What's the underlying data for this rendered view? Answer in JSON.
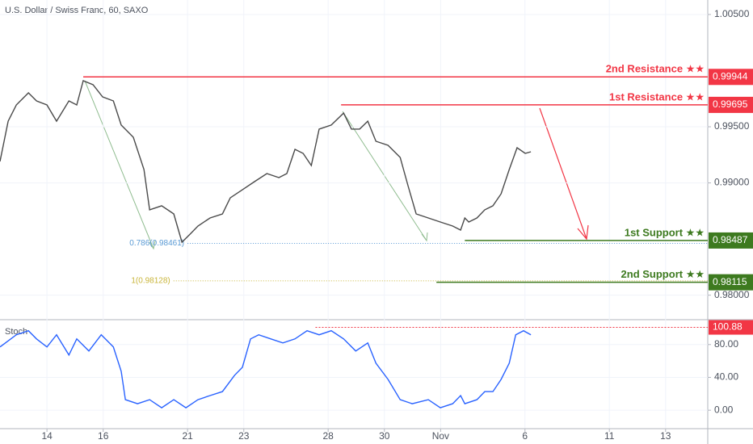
{
  "chart_data": [
    {
      "type": "line",
      "title": "U.S. Dollar / Swiss Franc, 60, SAXO",
      "color": "#4a4a4a",
      "x": [
        -1.67,
        -1.38,
        -1.09,
        -0.66,
        -0.37,
        0,
        0.34,
        0.78,
        1.06,
        1.29,
        1.64,
        1.98,
        2.36,
        2.64,
        3.07,
        3.45,
        3.65,
        4.08,
        4.51,
        4.8,
        5.09,
        5.37,
        5.8,
        6.24,
        6.52,
        6.95,
        7.38,
        7.82,
        8.25,
        8.53,
        8.82,
        9.11,
        9.4,
        9.68,
        10.11,
        10.55,
        10.83,
        11.12,
        11.41,
        11.7,
        12.13,
        12.56,
        12.84,
        13.13,
        13.56,
        13.99,
        14.43,
        14.71,
        14.86,
        15,
        15.29,
        15.57,
        15.86,
        16.15,
        16.44,
        16.72,
        17.01,
        17.21
      ],
      "values": [
        0.99191,
        0.9955,
        0.99694,
        0.99802,
        0.9973,
        0.99694,
        0.9955,
        0.9973,
        0.99694,
        0.9991,
        0.99874,
        0.99766,
        0.9973,
        0.99515,
        0.99407,
        0.99119,
        0.9876,
        0.98796,
        0.98724,
        0.98472,
        0.98544,
        0.98616,
        0.98688,
        0.98724,
        0.98867,
        0.98939,
        0.99011,
        0.99083,
        0.99047,
        0.99083,
        0.99299,
        0.99263,
        0.99155,
        0.99479,
        0.99515,
        0.99622,
        0.99479,
        0.99479,
        0.9955,
        0.99371,
        0.99335,
        0.99227,
        0.98975,
        0.98724,
        0.98688,
        0.98652,
        0.98616,
        0.9858,
        0.98688,
        0.98652,
        0.98688,
        0.9876,
        0.98796,
        0.98903,
        0.99119,
        0.99313,
        0.99263,
        0.99277
      ],
      "xlim": [
        -1.67,
        23.5
      ],
      "xticks": [
        {
          "value": 0,
          "label": "14"
        },
        {
          "value": 2,
          "label": "16"
        },
        {
          "value": 5,
          "label": "21"
        },
        {
          "value": 7,
          "label": "23"
        },
        {
          "value": 10,
          "label": "28"
        },
        {
          "value": 12,
          "label": "30"
        },
        {
          "value": 14,
          "label": "Nov"
        },
        {
          "value": 17,
          "label": "6"
        },
        {
          "value": 20,
          "label": "11"
        },
        {
          "value": 22,
          "label": "13"
        }
      ],
      "ylim": [
        0.97789,
        1.00629
      ],
      "yticks": [
        {
          "value": 1.005,
          "label": "1.00500"
        },
        {
          "value": 0.995,
          "label": "0.99500"
        },
        {
          "value": 0.99,
          "label": "0.99000"
        },
        {
          "value": 0.98,
          "label": "0.98000"
        }
      ],
      "levels": [
        {
          "label": "2nd Resistance ★★",
          "value": 0.99944,
          "x_start": 1.29,
          "color": "#f23645"
        },
        {
          "label": "1st Resistance ★★",
          "value": 0.99695,
          "x_start": 10.46,
          "color": "#f23645"
        },
        {
          "label": "1st Support ★★",
          "value": 0.98487,
          "x_start": 14.86,
          "color": "#3d7a1f"
        },
        {
          "label": "2nd Support ★★",
          "value": 0.98115,
          "x_start": 13.85,
          "color": "#3d7a1f"
        }
      ],
      "fib_levels": [
        {
          "label": "0.786(0.98461)",
          "value": 0.98461,
          "x_start": 5.0,
          "color": "#5b9bd5"
        },
        {
          "label": "1(0.98128)",
          "value": 0.98128,
          "x_start": 4.5,
          "color": "#c9b53a"
        }
      ]
    },
    {
      "type": "line",
      "title": "Stoch",
      "color": "#2962ff",
      "x": [
        -1.67,
        -1.09,
        -0.66,
        -0.37,
        0,
        0.34,
        0.78,
        1.06,
        1.49,
        1.93,
        2.36,
        2.64,
        2.79,
        3.22,
        3.65,
        4.08,
        4.51,
        4.94,
        5.37,
        5.8,
        6.24,
        6.67,
        6.95,
        7.24,
        7.53,
        7.96,
        8.39,
        8.82,
        9.25,
        9.68,
        10.11,
        10.55,
        10.98,
        11.41,
        11.7,
        12.13,
        12.56,
        12.99,
        13.56,
        13.99,
        14.43,
        14.71,
        14.86,
        15.29,
        15.57,
        15.86,
        16.15,
        16.44,
        16.67,
        16.95,
        17.21
      ],
      "values": [
        77.0,
        91.9,
        96.8,
        86.9,
        77.0,
        91.9,
        67.2,
        86.9,
        72.1,
        91.9,
        77.0,
        47.4,
        12.8,
        7.9,
        12.8,
        3.0,
        12.8,
        3.0,
        12.8,
        17.8,
        22.7,
        42.5,
        52.3,
        86.9,
        91.9,
        86.9,
        82.0,
        86.9,
        96.8,
        91.9,
        96.8,
        86.9,
        72.1,
        82.0,
        57.3,
        37.5,
        12.8,
        7.9,
        12.8,
        3.0,
        7.9,
        17.8,
        7.9,
        12.8,
        22.7,
        22.7,
        37.5,
        57.3,
        91.9,
        96.8,
        91.9
      ],
      "xlim": [
        -1.67,
        23.5
      ],
      "ylim": [
        -21.5,
        109.3
      ],
      "yticks": [
        {
          "value": 0,
          "label": "0.00"
        },
        {
          "value": 40,
          "label": "40.00"
        },
        {
          "value": 80,
          "label": "80.00"
        }
      ],
      "marker": {
        "value": 100.88,
        "x_start": 9.55,
        "color": "#f23645"
      }
    }
  ]
}
